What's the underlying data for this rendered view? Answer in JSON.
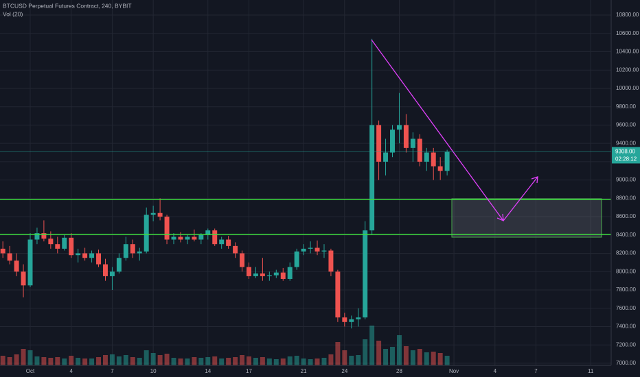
{
  "chart_data": {
    "type": "candlestick",
    "title": "BTCUSD Perpetual Futures Contract, 240, BYBIT",
    "indicator": "Vol (20)",
    "up_color": "#26a69a",
    "down_color": "#ef5350",
    "grid": true,
    "x": [
      -1,
      -0.5,
      0,
      0.5,
      1,
      1.5,
      2,
      2.5,
      3,
      3.5,
      4,
      4.5,
      5,
      5.5,
      6,
      6.5,
      7,
      7.5,
      8,
      8.5,
      9,
      9.5,
      10,
      10.5,
      11,
      11.5,
      12,
      12.5,
      13,
      13.5,
      14,
      14.5,
      15,
      15.5,
      16,
      16.5,
      17,
      17.5,
      18,
      18.5,
      19,
      19.5,
      20,
      20.5,
      21,
      21.5,
      22,
      22.5,
      23,
      23.5,
      24,
      24.5,
      25,
      25.5,
      26,
      26.5,
      27,
      27.5,
      28,
      28.5,
      29,
      29.5,
      30,
      30.5,
      31,
      31.5
    ],
    "open": [
      8250,
      8200,
      8120,
      8000,
      7850,
      8350,
      8420,
      8360,
      8300,
      8250,
      8370,
      8180,
      8200,
      8150,
      8200,
      8080,
      7950,
      8000,
      8150,
      8300,
      8200,
      8220,
      8620,
      8640,
      8600,
      8350,
      8380,
      8350,
      8380,
      8350,
      8400,
      8450,
      8300,
      8350,
      8280,
      8200,
      8050,
      7950,
      7980,
      7950,
      7960,
      7990,
      7920,
      8050,
      8220,
      8250,
      8260,
      8220,
      8230,
      8000,
      7500,
      7450,
      7480,
      7500,
      8450,
      9600,
      9200,
      9300,
      9550,
      9600,
      9350,
      9450,
      9200,
      9300,
      9150,
      9100
    ],
    "high": [
      8330,
      8280,
      8200,
      8080,
      8420,
      8480,
      8560,
      8440,
      8380,
      8400,
      8420,
      8250,
      8260,
      8230,
      8240,
      8140,
      8050,
      8200,
      8380,
      8350,
      8260,
      8700,
      8720,
      8800,
      8620,
      8420,
      8430,
      8400,
      8460,
      8420,
      8470,
      8470,
      8380,
      8390,
      8320,
      8230,
      8100,
      8050,
      8150,
      8000,
      8020,
      8040,
      8100,
      8250,
      8300,
      8330,
      8340,
      8300,
      8250,
      8020,
      7550,
      7520,
      7600,
      8550,
      10540,
      9650,
      9450,
      9600,
      9950,
      9720,
      9520,
      9500,
      9350,
      9350,
      9250,
      9330
    ],
    "low": [
      8150,
      8080,
      7950,
      7720,
      7830,
      8300,
      8330,
      8250,
      8200,
      8230,
      8150,
      8100,
      8120,
      8100,
      8050,
      7900,
      7800,
      7980,
      8120,
      8150,
      8120,
      8200,
      8550,
      8560,
      8300,
      8300,
      8320,
      8300,
      8330,
      8300,
      8350,
      8280,
      8250,
      8250,
      8150,
      8000,
      7920,
      7930,
      7900,
      7900,
      7930,
      7900,
      7900,
      8020,
      8180,
      8200,
      8180,
      8150,
      7950,
      7450,
      7400,
      7380,
      7400,
      7480,
      8400,
      9000,
      9050,
      9250,
      9400,
      9300,
      9200,
      9150,
      9100,
      9000,
      9000,
      9050
    ],
    "close": [
      8200,
      8120,
      8000,
      7850,
      8350,
      8420,
      8360,
      8300,
      8250,
      8370,
      8180,
      8200,
      8150,
      8200,
      8080,
      7950,
      8000,
      8150,
      8300,
      8200,
      8220,
      8620,
      8640,
      8600,
      8350,
      8380,
      8350,
      8380,
      8350,
      8400,
      8450,
      8300,
      8350,
      8280,
      8200,
      8050,
      7950,
      7980,
      7950,
      7960,
      7990,
      7920,
      8050,
      8220,
      8250,
      8260,
      8220,
      8230,
      8000,
      7500,
      7450,
      7480,
      7500,
      8450,
      9600,
      9200,
      9300,
      9550,
      9600,
      9350,
      9450,
      9200,
      9300,
      9150,
      9100,
      9308
    ],
    "volume": [
      14,
      12,
      16,
      24,
      22,
      13,
      12,
      11,
      12,
      10,
      14,
      11,
      10,
      10,
      12,
      15,
      16,
      13,
      15,
      12,
      11,
      22,
      18,
      15,
      17,
      11,
      10,
      10,
      12,
      11,
      12,
      13,
      10,
      11,
      12,
      15,
      13,
      11,
      12,
      10,
      9,
      10,
      13,
      14,
      10,
      9,
      10,
      11,
      16,
      34,
      22,
      14,
      15,
      38,
      58,
      36,
      24,
      27,
      44,
      28,
      22,
      24,
      19,
      20,
      18,
      14
    ],
    "xlim": [
      -1.21,
      43.5
    ],
    "xticks": [
      {
        "value": 1,
        "label": "Oct"
      },
      4,
      7,
      10,
      14,
      17,
      21,
      24,
      28,
      {
        "value": 32,
        "label": "Nov"
      },
      {
        "value": 35,
        "label": "4"
      },
      {
        "value": 38,
        "label": "7"
      },
      {
        "value": 42,
        "label": "11"
      }
    ],
    "ylim": [
      6977,
      10965
    ],
    "yticks": [
      {
        "value": 7000,
        "label": "7000.00"
      },
      {
        "value": 7200,
        "label": "7200.00"
      },
      {
        "value": 7400,
        "label": "7400.00"
      },
      {
        "value": 7600,
        "label": "7600.00"
      },
      {
        "value": 7800,
        "label": "7800.00"
      },
      {
        "value": 8000,
        "label": "8000.00"
      },
      {
        "value": 8200,
        "label": "8200.00"
      },
      {
        "value": 8400,
        "label": "8400.00"
      },
      {
        "value": 8600,
        "label": "8600.00"
      },
      {
        "value": 8800,
        "label": "8800.00"
      },
      {
        "value": 9000,
        "label": "9000.00"
      },
      {
        "value": 9200,
        "label": "9200.00"
      },
      {
        "value": 9400,
        "label": "9400.00"
      },
      {
        "value": 9600,
        "label": "9600.00"
      },
      {
        "value": 9800,
        "label": "9800.00"
      },
      {
        "value": 10000,
        "label": "10000.00"
      },
      {
        "value": 10200,
        "label": "10200.00"
      },
      {
        "value": 10400,
        "label": "10400.00"
      },
      {
        "value": 10600,
        "label": "10600.00"
      },
      {
        "value": 10800,
        "label": "10800.00"
      }
    ],
    "price_label": {
      "value": 9308,
      "label": "9308.00"
    },
    "countdown": "02:28:12"
  }
}
